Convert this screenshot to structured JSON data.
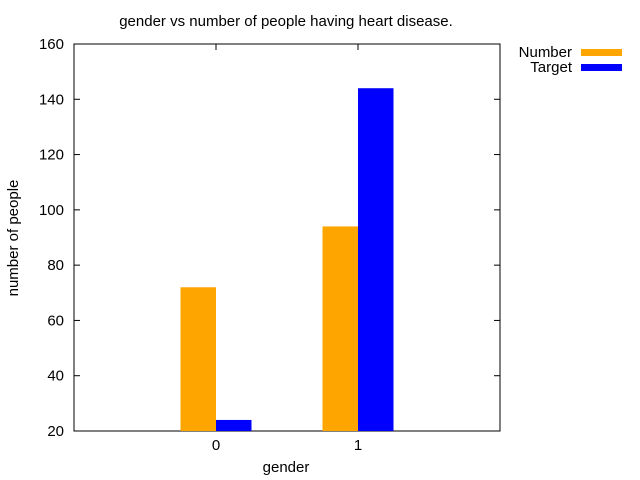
{
  "chart_data": {
    "type": "bar",
    "title": "gender vs number of people having heart disease.",
    "xlabel": "gender",
    "ylabel": "number of people",
    "categories": [
      "0",
      "1"
    ],
    "series": [
      {
        "name": "Number",
        "values": [
          72,
          94
        ],
        "color": "#FFA500"
      },
      {
        "name": "Target",
        "values": [
          24,
          144
        ],
        "color": "#0000FF"
      }
    ],
    "ylim": [
      20,
      160
    ],
    "yticks": [
      20,
      40,
      60,
      80,
      100,
      120,
      140,
      160
    ],
    "xlim": [
      -1,
      2
    ],
    "grid": false,
    "legend_position": "outside-top-right"
  }
}
